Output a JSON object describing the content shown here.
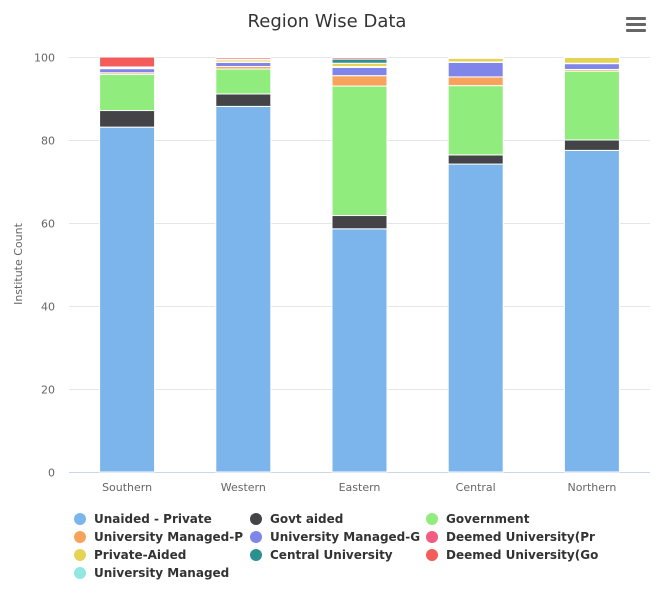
{
  "menu_icon": "hamburger-menu-icon",
  "chart_data": {
    "type": "bar",
    "stacked": true,
    "title": "Region Wise Data",
    "xlabel": "",
    "ylabel": "Institute Count",
    "ylim": [
      0,
      100
    ],
    "yticks": [
      0,
      20,
      40,
      60,
      80,
      100
    ],
    "grid": true,
    "legend_position": "bottom",
    "categories": [
      "Southern",
      "Western",
      "Eastern",
      "Central",
      "Northern"
    ],
    "series": [
      {
        "name": "Unaided - Private",
        "color": "#7cb5ec",
        "values": [
          83.1,
          88.1,
          58.6,
          74.2,
          77.5
        ]
      },
      {
        "name": "Govt aided",
        "color": "#434348",
        "values": [
          4.0,
          3.0,
          3.2,
          2.2,
          2.5
        ]
      },
      {
        "name": "Government",
        "color": "#90ed7d",
        "values": [
          8.7,
          6.0,
          31.2,
          16.7,
          16.6
        ]
      },
      {
        "name": "University Managed-P",
        "color": "#f7a35c",
        "values": [
          0.4,
          0.6,
          2.5,
          2.1,
          0.4
        ]
      },
      {
        "name": "University Managed-G",
        "color": "#8085e9",
        "values": [
          1.0,
          1.0,
          2.0,
          3.5,
          1.4
        ]
      },
      {
        "name": "Deemed University(Pr",
        "color": "#f15c80",
        "values": [
          0.2,
          0.1,
          0.2,
          0.1,
          0.1
        ]
      },
      {
        "name": "Private-Aided",
        "color": "#e4d354",
        "values": [
          0.1,
          0.5,
          0.8,
          0.9,
          1.4
        ]
      },
      {
        "name": "Central University",
        "color": "#2b908f",
        "values": [
          0.1,
          0.2,
          1.0,
          0.2,
          0.1
        ]
      },
      {
        "name": "Deemed University(Go",
        "color": "#f45b5b",
        "values": [
          2.4,
          0.4,
          0.4,
          0.1,
          0.0
        ]
      },
      {
        "name": "University Managed",
        "color": "#91e8e1",
        "values": [
          0.0,
          0.1,
          0.1,
          0.0,
          0.0
        ]
      }
    ]
  }
}
